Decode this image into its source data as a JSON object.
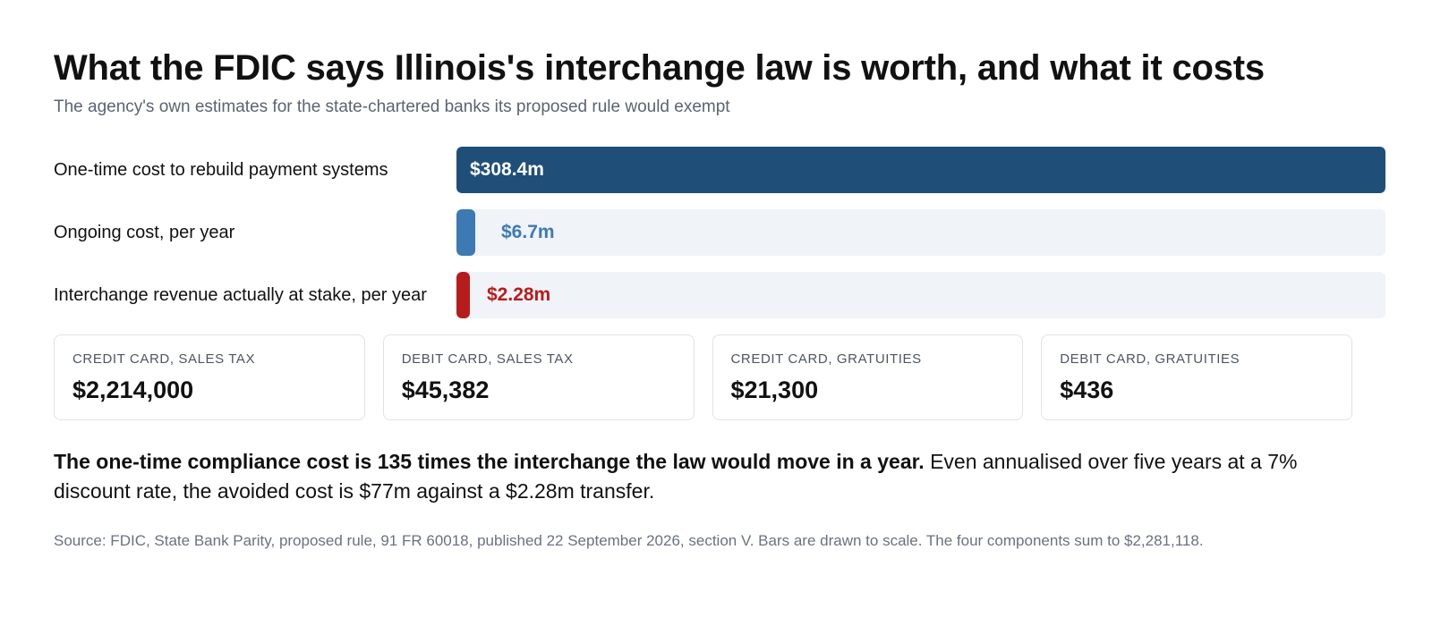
{
  "header": {
    "title": "What the FDIC says Illinois's interchange law is worth, and what it costs",
    "subtitle": "The agency's own estimates for the state-chartered banks its proposed rule would exempt"
  },
  "chart_data": {
    "type": "bar",
    "orientation": "horizontal",
    "categories": [
      "One-time cost to rebuild payment systems",
      "Ongoing cost, per year",
      "Interchange revenue actually at stake, per year"
    ],
    "values": [
      308.4,
      6.7,
      2.28
    ],
    "unit": "$m",
    "data_labels": [
      "$308.4m",
      "$6.7m",
      "$2.28m"
    ],
    "colors": [
      "#1f4e79",
      "#3d7ab3",
      "#b71c1c"
    ],
    "track_color": "#f0f3f7",
    "xlim": [
      0,
      308.4
    ],
    "grid": false,
    "legend": "none",
    "title": "What the FDIC says Illinois's interchange law is worth, and what it costs",
    "subtitle": "The agency's own estimates for the state-chartered banks its proposed rule would exempt"
  },
  "components": [
    {
      "label": "CREDIT CARD, SALES TAX",
      "value": "$2,214,000"
    },
    {
      "label": "DEBIT CARD, SALES TAX",
      "value": "$45,382"
    },
    {
      "label": "CREDIT CARD, GRATUITIES",
      "value": "$21,300"
    },
    {
      "label": "DEBIT CARD, GRATUITIES",
      "value": "$436"
    }
  ],
  "summary": {
    "strong": "The one-time compliance cost is 135 times the interchange the law would move in a year.",
    "rest": " Even annualised over five years at a 7% discount rate, the avoided cost is $77m against a $2.28m transfer."
  },
  "source": "Source: FDIC, State Bank Parity, proposed rule, 91 FR 60018, published 22 September 2026, section V. Bars are drawn to scale. The four components sum to $2,281,118."
}
